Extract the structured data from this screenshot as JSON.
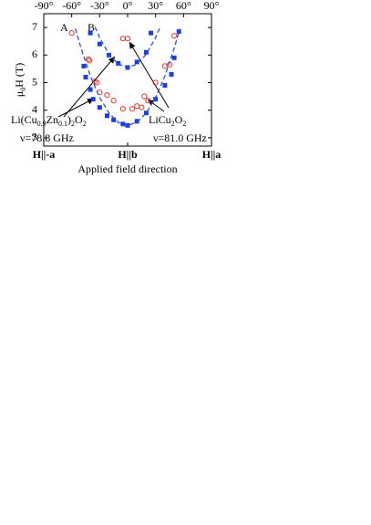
{
  "chart_data": {
    "type": "scatter",
    "xlim": [
      -90,
      90
    ],
    "ylim": [
      2.7,
      7.5
    ],
    "xticks": [
      {
        "value": -90,
        "label": "-90°"
      },
      {
        "value": -60,
        "label": "-60°"
      },
      {
        "value": -30,
        "label": "-30°"
      },
      {
        "value": 0,
        "label": "0°"
      },
      {
        "value": 30,
        "label": "30°"
      },
      {
        "value": 60,
        "label": "60°"
      },
      {
        "value": 90,
        "label": "90°"
      }
    ],
    "xticks_bottom": [
      {
        "value": -90,
        "label": "H||-a"
      },
      {
        "value": 0,
        "label": "H||b"
      },
      {
        "value": 90,
        "label": "H||a"
      }
    ],
    "yticks": [
      3,
      4,
      5,
      6,
      7
    ],
    "xlabel": "Applied field direction",
    "ylabel_parts": [
      "μ",
      "0",
      "H (T)"
    ],
    "annotations": {
      "A": "A",
      "B": "B",
      "sample1_parts": [
        "Li(Cu",
        "0.9",
        "Zn",
        "0.1",
        ")",
        "2",
        "O",
        "2"
      ],
      "freq1": "ν=78.8 GHz",
      "sample2_parts": [
        "LiCu",
        "2",
        "O",
        "2"
      ],
      "freq2": "ν=81.0 GHz"
    },
    "series": [
      {
        "color": "#1b3fd8",
        "marker": "square",
        "x": [
          -47,
          -45,
          -40,
          -37,
          -30,
          -22,
          -15,
          -5,
          0,
          10,
          20,
          30,
          40,
          47,
          50,
          55,
          -40,
          -30,
          -20,
          -10,
          0,
          10,
          20,
          25
        ],
        "values": [
          5.6,
          5.2,
          4.75,
          4.4,
          4.1,
          3.8,
          3.65,
          3.5,
          3.45,
          3.6,
          3.9,
          4.4,
          4.9,
          5.3,
          5.9,
          6.85,
          6.8,
          6.4,
          6.0,
          5.7,
          5.55,
          5.75,
          6.1,
          6.8
        ]
      },
      {
        "color": "#e8362a",
        "marker": "circle",
        "x": [
          -60,
          -42,
          -41,
          -35,
          -33,
          -30,
          -22,
          -15,
          -5,
          5,
          10,
          15,
          18,
          22,
          30,
          40,
          45,
          50,
          -5,
          0
        ],
        "values": [
          6.8,
          5.85,
          5.8,
          5.05,
          5.0,
          4.65,
          4.55,
          4.35,
          4.05,
          4.05,
          4.15,
          4.1,
          4.5,
          4.35,
          5.0,
          5.6,
          5.65,
          6.7,
          6.6,
          6.6
        ]
      },
      {
        "color": "#2a50e0",
        "dashed": true,
        "x": [
          -56,
          -50,
          -40,
          -30,
          -20,
          -10,
          0,
          10,
          20,
          30,
          40,
          50,
          56
        ],
        "values": [
          6.96,
          6.25,
          5.24,
          4.46,
          3.9,
          3.56,
          3.45,
          3.56,
          3.9,
          4.46,
          5.24,
          6.25,
          6.96
        ]
      },
      {
        "color": "#2a50e0",
        "dashed": true,
        "x": [
          -35,
          -30,
          -20,
          -10,
          0,
          10,
          20,
          30,
          35
        ],
        "values": [
          7.02,
          6.63,
          6.03,
          5.67,
          5.55,
          5.67,
          6.03,
          6.63,
          7.02
        ]
      }
    ]
  }
}
